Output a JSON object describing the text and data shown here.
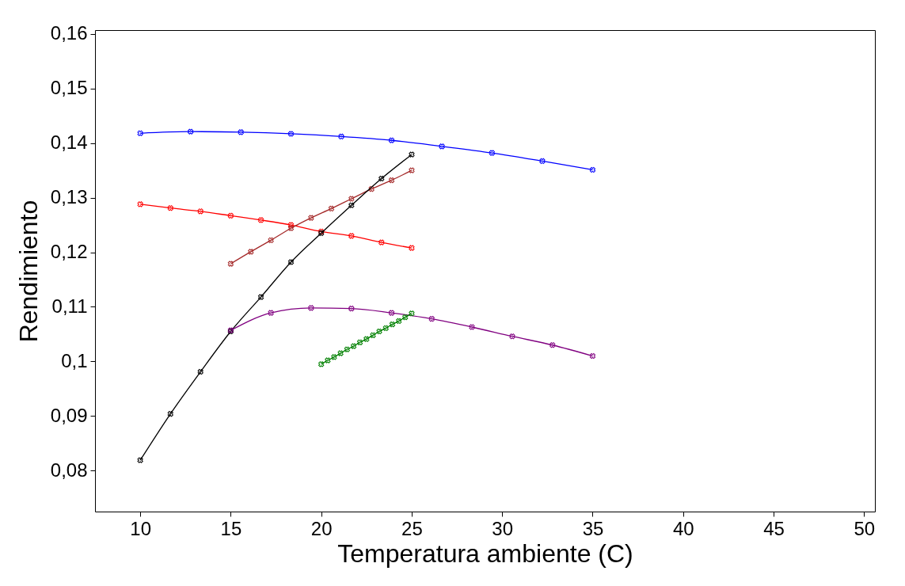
{
  "chart_data": {
    "type": "line",
    "xlabel": "Temperatura ambiente (C)",
    "ylabel": "Rendimiento",
    "xlim": [
      7.5,
      50.6
    ],
    "ylim": [
      0.0725,
      0.1607
    ],
    "xticks": [
      10,
      15,
      20,
      25,
      30,
      35,
      40,
      45,
      50
    ],
    "yticks": [
      {
        "value": 0.08,
        "label": "0,08"
      },
      {
        "value": 0.09,
        "label": "0,09"
      },
      {
        "value": 0.1,
        "label": "0,1"
      },
      {
        "value": 0.11,
        "label": "0,11"
      },
      {
        "value": 0.12,
        "label": "0,12"
      },
      {
        "value": 0.13,
        "label": "0,13"
      },
      {
        "value": 0.14,
        "label": "0,14"
      },
      {
        "value": 0.15,
        "label": "0,15"
      },
      {
        "value": 0.16,
        "label": "0,16"
      }
    ],
    "grid": false,
    "marker": "cross",
    "line_style": "solid",
    "series": [
      {
        "color": "#0000ff",
        "x": [
          10,
          12.78,
          15.56,
          18.33,
          21.11,
          23.89,
          26.67,
          29.44,
          32.22,
          35
        ],
        "values": [
          0.1418,
          0.1421,
          0.142,
          0.1417,
          0.1412,
          0.1405,
          0.1394,
          0.1382,
          0.1367,
          0.1351
        ]
      },
      {
        "color": "#ff0000",
        "x": [
          10,
          11.67,
          13.33,
          15,
          16.67,
          18.33,
          20,
          21.67,
          23.33,
          25
        ],
        "values": [
          0.1288,
          0.1281,
          0.1275,
          0.1267,
          0.1259,
          0.125,
          0.1238,
          0.123,
          0.1218,
          0.1208
        ]
      },
      {
        "color": "#a52a2a",
        "x": [
          15,
          16.11,
          17.22,
          18.33,
          19.44,
          20.56,
          21.67,
          22.78,
          23.89,
          25
        ],
        "values": [
          0.1179,
          0.1201,
          0.1222,
          0.1244,
          0.1263,
          0.128,
          0.1298,
          0.1316,
          0.1332,
          0.135
        ]
      },
      {
        "color": "#000000",
        "x": [
          10,
          11.67,
          13.33,
          15,
          16.67,
          18.33,
          20,
          21.67,
          23.33,
          25
        ],
        "values": [
          0.0819,
          0.0904,
          0.0981,
          0.1055,
          0.1118,
          0.1182,
          0.1235,
          0.1286,
          0.1335,
          0.1379
        ]
      },
      {
        "color": "#800080",
        "x": [
          15,
          17.22,
          19.44,
          21.67,
          23.89,
          26.11,
          28.33,
          30.56,
          32.78,
          35
        ],
        "values": [
          0.1057,
          0.1089,
          0.1098,
          0.1097,
          0.1089,
          0.1078,
          0.1063,
          0.1046,
          0.103,
          0.101
        ]
      },
      {
        "color": "#008000",
        "x": [
          20,
          20.36,
          20.71,
          21.07,
          21.43,
          21.79,
          22.14,
          22.5,
          22.86,
          23.21,
          23.57,
          23.93,
          24.29,
          24.64,
          25
        ],
        "values": [
          0.0995,
          0.1002,
          0.1008,
          0.1015,
          0.1022,
          0.1028,
          0.1035,
          0.1041,
          0.1048,
          0.1055,
          0.1061,
          0.1068,
          0.1074,
          0.1081,
          0.1088
        ]
      }
    ]
  }
}
